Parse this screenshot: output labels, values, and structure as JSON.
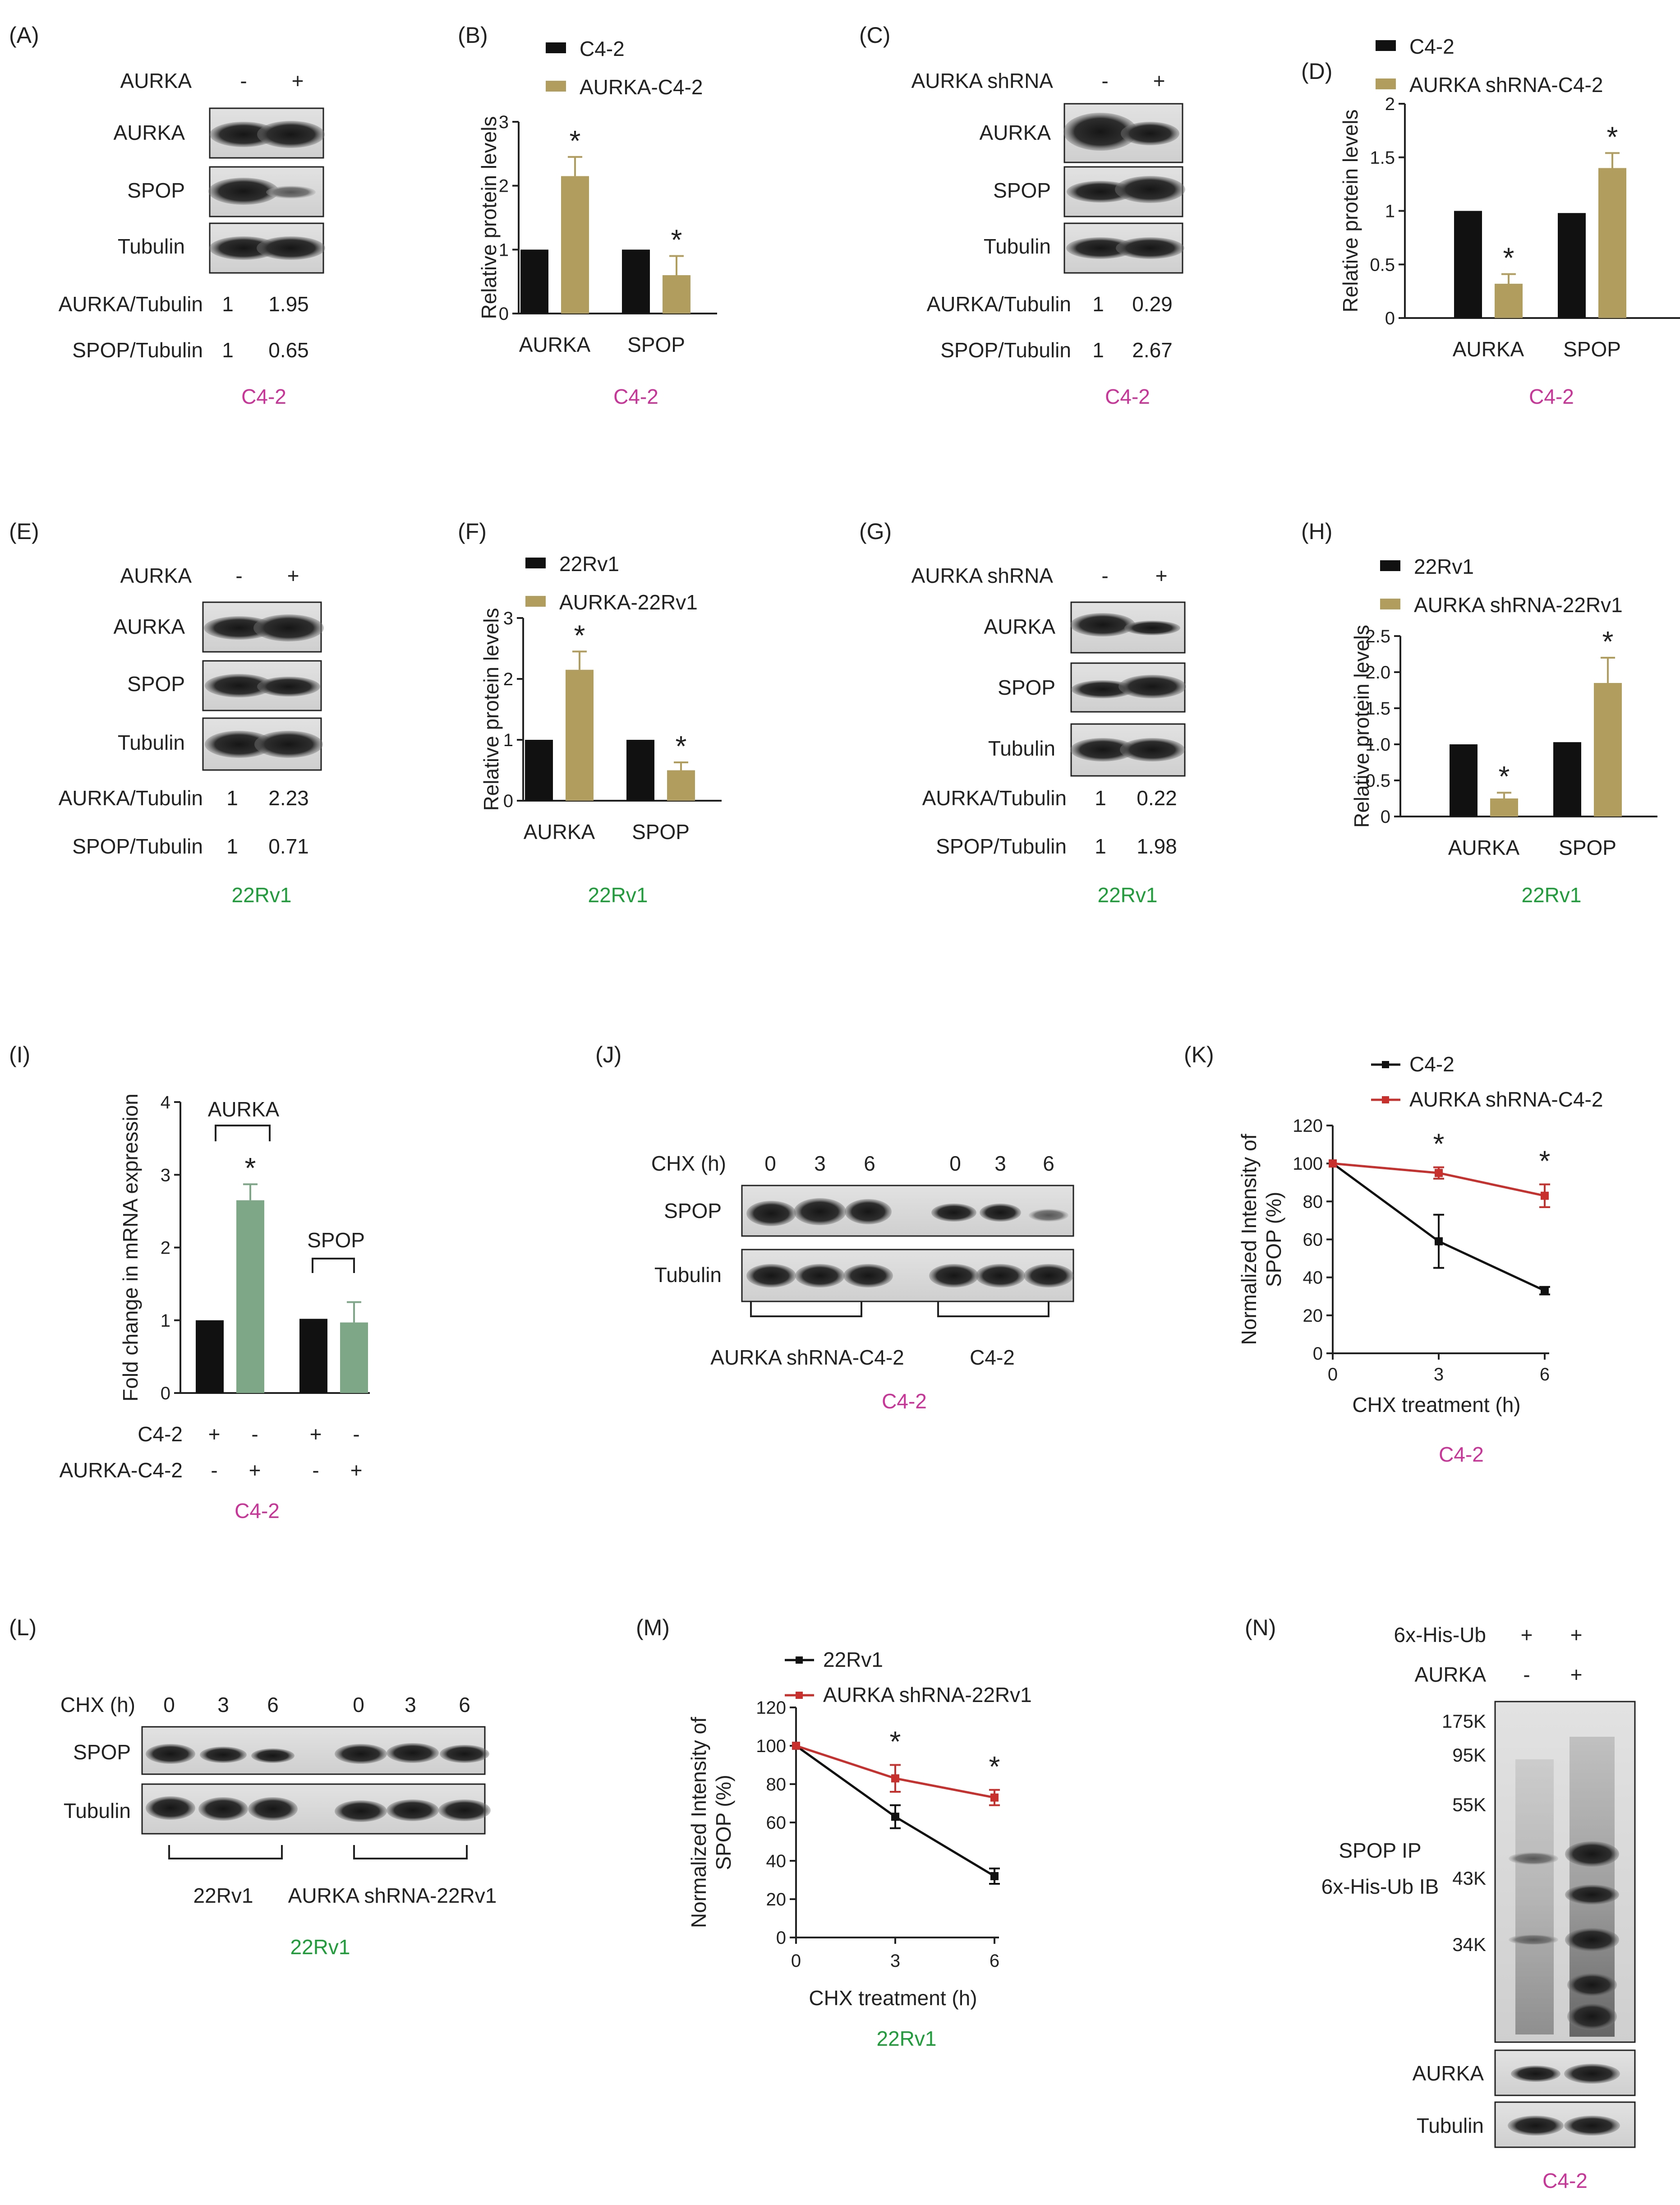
{
  "colors": {
    "black_bar": "#111111",
    "gold_bar": "#b19d5e",
    "green_bar": "#7ea788",
    "red_line": "#c8302e",
    "black_line": "#111111",
    "c42_label": "#cc3399",
    "rv1_label": "#1f9d3a"
  },
  "panels": {
    "A": {
      "letter": "(A)",
      "header_label": "AURKA",
      "header_minus": "-",
      "header_plus": "+",
      "rows": [
        "AURKA",
        "SPOP",
        "Tubulin"
      ],
      "q1_label": "AURKA/Tubulin",
      "q1_v1": "1",
      "q1_v2": "1.95",
      "q2_label": "SPOP/Tubulin",
      "q2_v1": "1",
      "q2_v2": "0.65",
      "cell": "C4-2"
    },
    "B": {
      "letter": "(B)",
      "cell": "C4-2"
    },
    "C": {
      "letter": "(C)",
      "header_label": "AURKA shRNA",
      "header_minus": "-",
      "header_plus": "+",
      "rows": [
        "AURKA",
        "SPOP",
        "Tubulin"
      ],
      "q1_label": "AURKA/Tubulin",
      "q1_v1": "1",
      "q1_v2": "0.29",
      "q2_label": "SPOP/Tubulin",
      "q2_v1": "1",
      "q2_v2": "2.67",
      "cell": "C4-2"
    },
    "D": {
      "letter": "(D)",
      "cell": "C4-2"
    },
    "E": {
      "letter": "(E)",
      "header_label": "AURKA",
      "header_minus": "-",
      "header_plus": "+",
      "rows": [
        "AURKA",
        "SPOP",
        "Tubulin"
      ],
      "q1_label": "AURKA/Tubulin",
      "q1_v1": "1",
      "q1_v2": "2.23",
      "q2_label": "SPOP/Tubulin",
      "q2_v1": "1",
      "q2_v2": "0.71",
      "cell": "22Rv1"
    },
    "F": {
      "letter": "(F)",
      "cell": "22Rv1"
    },
    "G": {
      "letter": "(G)",
      "header_label": "AURKA shRNA",
      "header_minus": "-",
      "header_plus": "+",
      "rows": [
        "AURKA",
        "SPOP",
        "Tubulin"
      ],
      "q1_label": "AURKA/Tubulin",
      "q1_v1": "1",
      "q1_v2": "0.22",
      "q2_label": "SPOP/Tubulin",
      "q2_v1": "1",
      "q2_v2": "1.98",
      "cell": "22Rv1"
    },
    "H": {
      "letter": "(H)",
      "cell": "22Rv1"
    },
    "I": {
      "letter": "(I)",
      "group1_label": "AURKA",
      "group2_label": "SPOP",
      "row1_label": "C4-2",
      "row1_signs": [
        "+",
        "-",
        "+",
        "-"
      ],
      "row2_label": "AURKA-C4-2",
      "row2_signs": [
        "-",
        "+",
        "-",
        "+"
      ],
      "cell": "C4-2"
    },
    "J": {
      "letter": "(J)",
      "chx_label": "CHX (h)",
      "times": [
        "0",
        "3",
        "6",
        "0",
        "3",
        "6"
      ],
      "rows": [
        "SPOP",
        "Tubulin"
      ],
      "group1": "AURKA shRNA-C4-2",
      "group2": "C4-2",
      "cell": "C4-2"
    },
    "K": {
      "letter": "(K)",
      "cell": "C4-2"
    },
    "L": {
      "letter": "(L)",
      "chx_label": "CHX (h)",
      "times": [
        "0",
        "3",
        "6",
        "0",
        "3",
        "6"
      ],
      "rows": [
        "SPOP",
        "Tubulin"
      ],
      "group1": "22Rv1",
      "group2": "AURKA shRNA-22Rv1",
      "cell": "22Rv1"
    },
    "M": {
      "letter": "(M)",
      "cell": "22Rv1"
    },
    "N": {
      "letter": "(N)",
      "row1_label": "6x-His-Ub",
      "row1_signs": [
        "+",
        "+"
      ],
      "row2_label": "AURKA",
      "row2_signs": [
        "-",
        "+"
      ],
      "markers": [
        "175K",
        "95K",
        "55K",
        "43K",
        "34K"
      ],
      "ip_label1": "SPOP IP",
      "ip_label2": "6x-His-Ub IB",
      "rows": [
        "AURKA",
        "Tubulin"
      ],
      "cell": "C4-2"
    }
  },
  "chart_data": [
    {
      "id": "B",
      "type": "bar",
      "categories": [
        "AURKA",
        "SPOP"
      ],
      "series": [
        {
          "name": "C4-2",
          "values": [
            1.0,
            1.0
          ],
          "errors": [
            0,
            0
          ]
        },
        {
          "name": "AURKA-C4-2",
          "values": [
            2.15,
            0.6
          ],
          "errors": [
            0.3,
            0.3
          ]
        }
      ],
      "significance": [
        "*",
        "*"
      ],
      "ylabel": "Relative protein levels",
      "ylim": [
        0,
        3
      ],
      "yticks": [
        0,
        1,
        2,
        3
      ],
      "legend": "top-left"
    },
    {
      "id": "D",
      "type": "bar",
      "categories": [
        "AURKA",
        "SPOP"
      ],
      "series": [
        {
          "name": "C4-2",
          "values": [
            1.0,
            0.98
          ],
          "errors": [
            0,
            0
          ]
        },
        {
          "name": "AURKA shRNA-C4-2",
          "values": [
            0.32,
            1.4
          ],
          "errors": [
            0.09,
            0.14
          ]
        }
      ],
      "significance": [
        "*",
        "*"
      ],
      "ylabel": "Relative protein levels",
      "ylim": [
        0,
        2
      ],
      "yticks": [
        0,
        0.5,
        1,
        1.5,
        2
      ],
      "legend": "top-left"
    },
    {
      "id": "F",
      "type": "bar",
      "categories": [
        "AURKA",
        "SPOP"
      ],
      "series": [
        {
          "name": "22Rv1",
          "values": [
            1.0,
            1.0
          ],
          "errors": [
            0,
            0
          ]
        },
        {
          "name": "AURKA-22Rv1",
          "values": [
            2.15,
            0.5
          ],
          "errors": [
            0.3,
            0.13
          ]
        }
      ],
      "significance": [
        "*",
        "*"
      ],
      "ylabel": "Relative protein levels",
      "ylim": [
        0,
        3
      ],
      "yticks": [
        0,
        1,
        2,
        3
      ],
      "legend": "top-left"
    },
    {
      "id": "H",
      "type": "bar",
      "categories": [
        "AURKA",
        "SPOP"
      ],
      "series": [
        {
          "name": "22Rv1",
          "values": [
            1.0,
            1.03
          ],
          "errors": [
            0,
            0
          ]
        },
        {
          "name": "AURKA shRNA-22Rv1",
          "values": [
            0.25,
            1.85
          ],
          "errors": [
            0.08,
            0.35
          ]
        }
      ],
      "significance": [
        "*",
        "*"
      ],
      "ylabel": "Relative protein levels",
      "ylim": [
        0,
        2.5
      ],
      "yticks": [
        "0",
        "0.5",
        "1.0",
        "1.5",
        "2.0",
        "2.5"
      ],
      "legend": "top-left"
    },
    {
      "id": "I",
      "type": "bar",
      "categories": [
        "AURKA",
        "SPOP"
      ],
      "series": [
        {
          "values": [
            1.0,
            1.02
          ],
          "errors": [
            0,
            0
          ]
        },
        {
          "values": [
            2.65,
            0.97
          ],
          "errors": [
            0.22,
            0.28
          ]
        }
      ],
      "significance": [
        "*",
        ""
      ],
      "ylabel": "Fold change in mRNA expression",
      "ylim": [
        0,
        4
      ],
      "yticks": [
        0,
        1,
        2,
        3,
        4
      ]
    },
    {
      "id": "K",
      "type": "line",
      "x": [
        0,
        3,
        6
      ],
      "series": [
        {
          "name": "C4-2",
          "values": [
            100,
            59,
            33
          ],
          "errors": [
            0,
            14,
            2
          ]
        },
        {
          "name": "AURKA shRNA-C4-2",
          "values": [
            100,
            95,
            83
          ],
          "errors": [
            0,
            3,
            6
          ]
        }
      ],
      "significance": [
        "",
        "*",
        "*"
      ],
      "xlabel": "CHX treatment (h)",
      "ylabel": "Normalized Intensity of SPOP (%)",
      "ylim": [
        0,
        120
      ],
      "yticks": [
        0,
        20,
        40,
        60,
        80,
        100,
        120
      ],
      "xticks": [
        0,
        3,
        6
      ],
      "legend": "top-right"
    },
    {
      "id": "M",
      "type": "line",
      "x": [
        0,
        3,
        6
      ],
      "series": [
        {
          "name": "22Rv1",
          "values": [
            100,
            63,
            32
          ],
          "errors": [
            0,
            6,
            4
          ]
        },
        {
          "name": "AURKA shRNA-22Rv1",
          "values": [
            100,
            83,
            73
          ],
          "errors": [
            0,
            7,
            4
          ]
        }
      ],
      "significance": [
        "",
        "*",
        "*"
      ],
      "xlabel": "CHX treatment (h)",
      "ylabel": "Normalized Intensity of SPOP (%)",
      "ylim": [
        0,
        120
      ],
      "yticks": [
        0,
        20,
        40,
        60,
        80,
        100,
        120
      ],
      "xticks": [
        0,
        3,
        6
      ],
      "legend": "top-right"
    }
  ]
}
